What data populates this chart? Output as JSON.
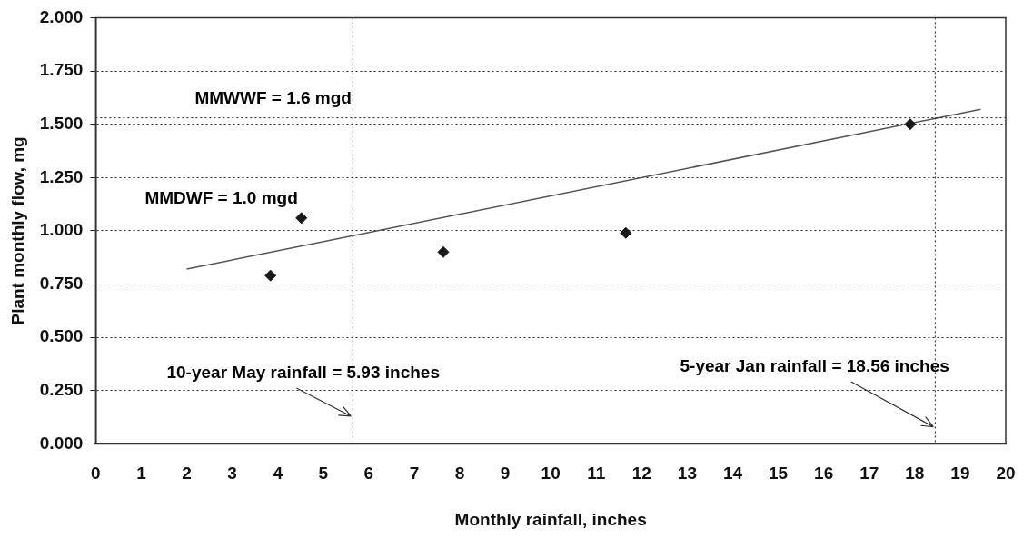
{
  "chart_data": {
    "type": "scatter",
    "xlabel": "Monthly rainfall, inches",
    "ylabel": "Plant monthly flow, mg",
    "xlim": [
      0,
      20
    ],
    "xticks": [
      0,
      1,
      2,
      3,
      4,
      5,
      6,
      7,
      8,
      9,
      10,
      11,
      12,
      13,
      14,
      15,
      16,
      17,
      18,
      19,
      20
    ],
    "ylim": [
      0,
      2
    ],
    "yticks": [
      {
        "value": 0,
        "label": "0.000"
      },
      {
        "value": 0.25,
        "label": "0.250"
      },
      {
        "value": 0.5,
        "label": "0.500"
      },
      {
        "value": 0.75,
        "label": "0.750"
      },
      {
        "value": 1,
        "label": "1.000"
      },
      {
        "value": 1.25,
        "label": "1.250"
      },
      {
        "value": 1.5,
        "label": "1.500"
      },
      {
        "value": 1.75,
        "label": "1.750"
      },
      {
        "value": 2,
        "label": "2.000"
      }
    ],
    "grid": "y",
    "marker": "diamond",
    "legend": false,
    "series": [
      {
        "color": "#1a1a1a",
        "x": [
          3.84,
          4.52,
          7.64,
          11.65,
          17.9
        ],
        "values": [
          0.79,
          1.06,
          0.9,
          0.99,
          1.5
        ]
      },
      {
        "type": "line",
        "color": "#555555",
        "line_style": "solid",
        "marker": "none",
        "x": [
          2,
          19.45
        ],
        "values": [
          0.82,
          1.57
        ]
      }
    ],
    "ref_lines": [
      {
        "axis": "y",
        "value": 1.53,
        "color": "#222222",
        "line_style": "dotted"
      },
      {
        "axis": "x",
        "value": 5.65,
        "color": "#222222",
        "line_style": "dotted"
      },
      {
        "axis": "x",
        "value": 18.45,
        "color": "#222222",
        "line_style": "dotted"
      }
    ],
    "annotations": [
      "MMWWF = 1.6 mgd",
      "MMDWF = 1.0 mgd",
      {
        "text": "10-year May rainfall = 5.93 inches",
        "x": 5.65,
        "y": 0.13
      },
      {
        "text": "5-year Jan rainfall = 18.56 inches",
        "x": 18.45,
        "y": 0.08
      }
    ]
  }
}
